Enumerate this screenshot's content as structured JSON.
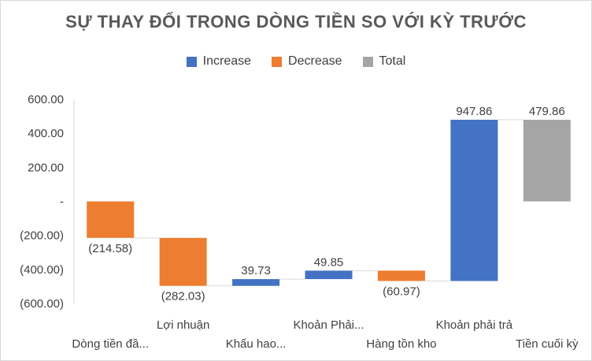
{
  "chart_data": {
    "type": "waterfall",
    "title": "SỰ THAY ĐỔI TRONG DÒNG TIỀN SO VỚI KỲ TRƯỚC",
    "legend": [
      {
        "name": "Increase",
        "color": "#4472c4"
      },
      {
        "name": "Decrease",
        "color": "#ed7d31"
      },
      {
        "name": "Total",
        "color": "#a5a5a5"
      }
    ],
    "categories": [
      "Dòng tiền đầ...",
      "Lợi nhuận",
      "Khấu hao...",
      "Khoản Phải...",
      "Hàng tồn kho",
      "Khoản phải trả",
      "Tiền cuối kỳ"
    ],
    "values": [
      -214.58,
      -282.03,
      39.73,
      49.85,
      -60.97,
      947.86,
      479.86
    ],
    "kinds": [
      "decrease",
      "decrease",
      "increase",
      "increase",
      "decrease",
      "increase",
      "total"
    ],
    "data_labels": [
      "(214.58)",
      "(282.03)",
      "39.73",
      "49.85",
      "(60.97)",
      "947.86",
      "479.86"
    ],
    "y_ticks": [
      600,
      400,
      200,
      0,
      -200,
      -400,
      -600
    ],
    "y_tick_labels": [
      "600.00",
      "400.00",
      "200.00",
      "-",
      "(200.00)",
      "(400.00)",
      "(600.00)"
    ],
    "ylim": [
      -600,
      600
    ],
    "grid": false,
    "legend_position": "top"
  }
}
